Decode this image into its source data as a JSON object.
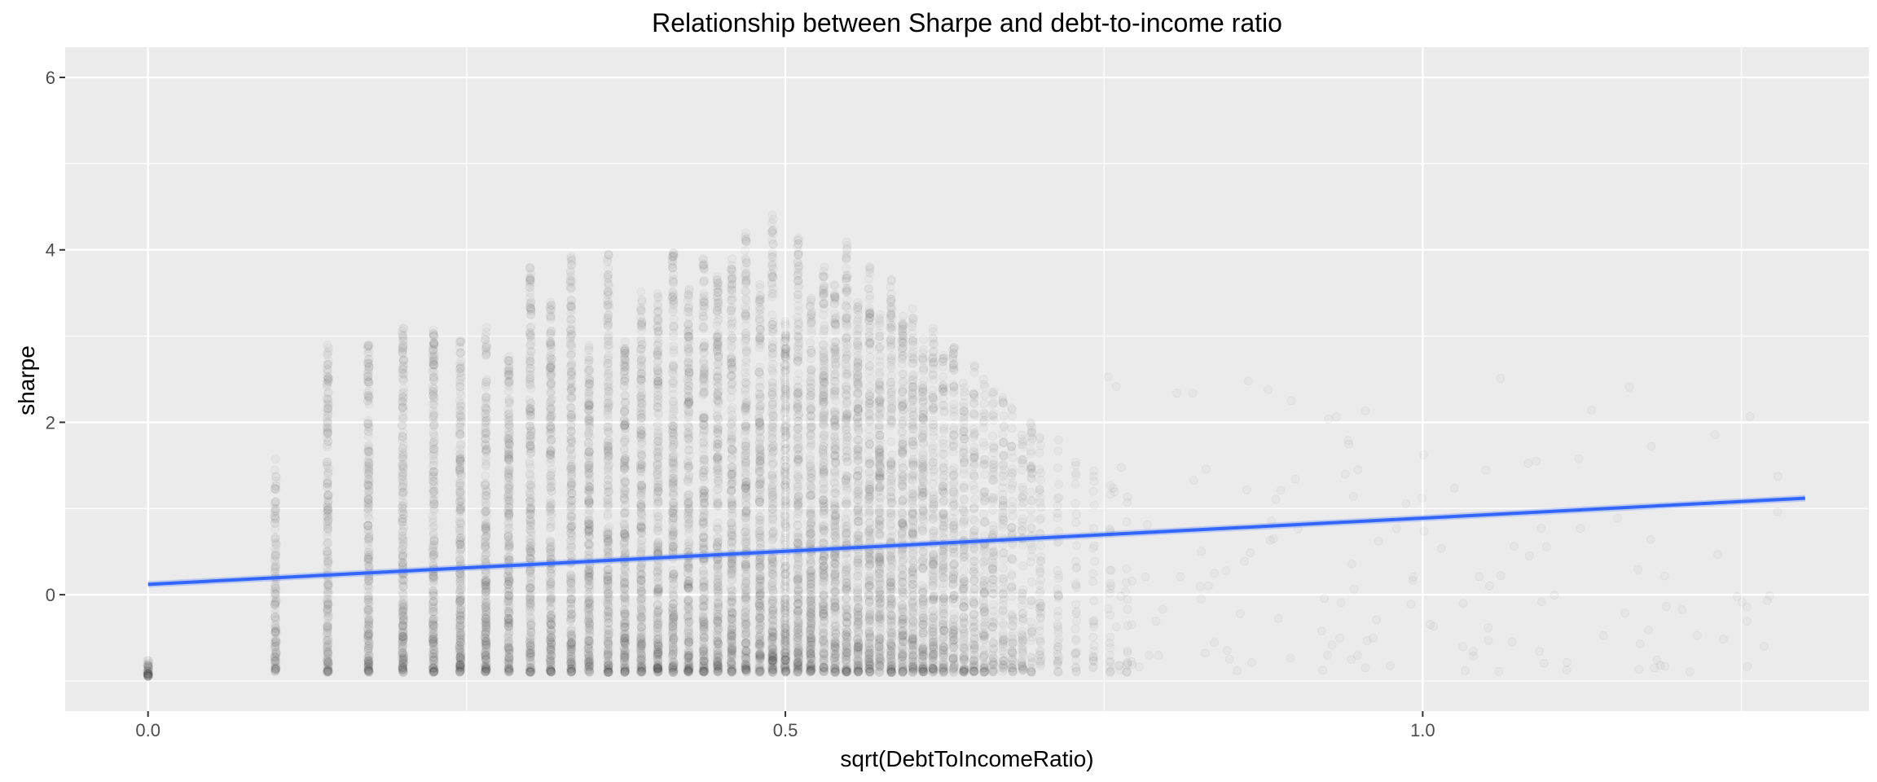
{
  "chart_data": {
    "type": "scatter",
    "title": "Relationship between Sharpe and debt-to-income ratio",
    "xlabel": "sqrt(DebtToIncomeRatio)",
    "ylabel": "sharpe",
    "xlim": [
      -0.065,
      1.35
    ],
    "ylim": [
      -1.35,
      6.35
    ],
    "x_ticks": [
      0.0,
      0.5,
      1.0
    ],
    "x_tick_labels": [
      "0.0",
      "0.5",
      "1.0"
    ],
    "y_ticks": [
      0,
      2,
      4,
      6
    ],
    "y_tick_labels": [
      "0",
      "2",
      "4",
      "6"
    ],
    "grid": true,
    "point_color": "#333333",
    "point_alpha": 0.03,
    "line_color": "#3366ff",
    "background": "#ebebeb",
    "grid_color": "#ffffff",
    "columns": [
      {
        "x": 0.0,
        "ymin": -0.95,
        "ymax": -0.75,
        "density": 0.2
      },
      {
        "x": 0.1,
        "ymin": -0.9,
        "ymax": 1.6,
        "density": 0.55
      },
      {
        "x": 0.141,
        "ymin": -0.9,
        "ymax": 2.9,
        "density": 0.85
      },
      {
        "x": 0.173,
        "ymin": -0.9,
        "ymax": 2.9,
        "density": 0.95
      },
      {
        "x": 0.2,
        "ymin": -0.9,
        "ymax": 3.1,
        "density": 1.0
      },
      {
        "x": 0.224,
        "ymin": -0.9,
        "ymax": 3.1,
        "density": 1.0
      },
      {
        "x": 0.245,
        "ymin": -0.9,
        "ymax": 3.0,
        "density": 1.0
      },
      {
        "x": 0.265,
        "ymin": -0.9,
        "ymax": 3.1,
        "density": 1.0
      },
      {
        "x": 0.283,
        "ymin": -0.9,
        "ymax": 2.8,
        "density": 1.0
      },
      {
        "x": 0.3,
        "ymin": -0.9,
        "ymax": 3.8,
        "density": 1.0
      },
      {
        "x": 0.316,
        "ymin": -0.9,
        "ymax": 3.4,
        "density": 1.0
      },
      {
        "x": 0.332,
        "ymin": -0.9,
        "ymax": 4.0,
        "density": 1.0
      },
      {
        "x": 0.346,
        "ymin": -0.9,
        "ymax": 3.0,
        "density": 1.0
      },
      {
        "x": 0.361,
        "ymin": -0.9,
        "ymax": 4.0,
        "density": 1.0
      },
      {
        "x": 0.374,
        "ymin": -0.9,
        "ymax": 3.0,
        "density": 1.0
      },
      {
        "x": 0.387,
        "ymin": -0.9,
        "ymax": 3.6,
        "density": 1.0
      },
      {
        "x": 0.4,
        "ymin": -0.9,
        "ymax": 3.5,
        "density": 1.0
      },
      {
        "x": 0.412,
        "ymin": -0.9,
        "ymax": 4.0,
        "density": 1.0
      },
      {
        "x": 0.424,
        "ymin": -0.9,
        "ymax": 3.6,
        "density": 1.0
      },
      {
        "x": 0.436,
        "ymin": -0.9,
        "ymax": 3.9,
        "density": 1.0
      },
      {
        "x": 0.447,
        "ymin": -0.9,
        "ymax": 3.7,
        "density": 1.0
      },
      {
        "x": 0.458,
        "ymin": -0.9,
        "ymax": 3.9,
        "density": 1.0
      },
      {
        "x": 0.469,
        "ymin": -0.9,
        "ymax": 4.2,
        "density": 1.0
      },
      {
        "x": 0.48,
        "ymin": -0.9,
        "ymax": 3.6,
        "density": 1.0
      },
      {
        "x": 0.49,
        "ymin": -0.9,
        "ymax": 4.5,
        "density": 1.0
      },
      {
        "x": 0.5,
        "ymin": -0.9,
        "ymax": 3.2,
        "density": 1.0
      },
      {
        "x": 0.51,
        "ymin": -0.9,
        "ymax": 4.2,
        "density": 1.0
      },
      {
        "x": 0.52,
        "ymin": -0.9,
        "ymax": 3.5,
        "density": 1.0
      },
      {
        "x": 0.53,
        "ymin": -0.9,
        "ymax": 3.8,
        "density": 0.95
      },
      {
        "x": 0.539,
        "ymin": -0.9,
        "ymax": 3.6,
        "density": 0.95
      },
      {
        "x": 0.548,
        "ymin": -0.9,
        "ymax": 4.1,
        "density": 0.9
      },
      {
        "x": 0.557,
        "ymin": -0.9,
        "ymax": 3.4,
        "density": 0.9
      },
      {
        "x": 0.566,
        "ymin": -0.9,
        "ymax": 3.9,
        "density": 0.85
      },
      {
        "x": 0.574,
        "ymin": -0.9,
        "ymax": 3.3,
        "density": 0.85
      },
      {
        "x": 0.583,
        "ymin": -0.9,
        "ymax": 3.7,
        "density": 0.8
      },
      {
        "x": 0.592,
        "ymin": -0.9,
        "ymax": 3.3,
        "density": 0.8
      },
      {
        "x": 0.6,
        "ymin": -0.9,
        "ymax": 3.4,
        "density": 0.75
      },
      {
        "x": 0.608,
        "ymin": -0.9,
        "ymax": 3.0,
        "density": 0.7
      },
      {
        "x": 0.616,
        "ymin": -0.9,
        "ymax": 3.1,
        "density": 0.65
      },
      {
        "x": 0.624,
        "ymin": -0.9,
        "ymax": 2.8,
        "density": 0.6
      },
      {
        "x": 0.632,
        "ymin": -0.9,
        "ymax": 2.9,
        "density": 0.55
      },
      {
        "x": 0.64,
        "ymin": -0.9,
        "ymax": 2.6,
        "density": 0.5
      },
      {
        "x": 0.648,
        "ymin": -0.9,
        "ymax": 2.7,
        "density": 0.45
      },
      {
        "x": 0.656,
        "ymin": -0.9,
        "ymax": 2.5,
        "density": 0.4
      },
      {
        "x": 0.663,
        "ymin": -0.9,
        "ymax": 2.4,
        "density": 0.35
      },
      {
        "x": 0.671,
        "ymin": -0.9,
        "ymax": 2.3,
        "density": 0.32
      },
      {
        "x": 0.678,
        "ymin": -0.9,
        "ymax": 2.2,
        "density": 0.28
      },
      {
        "x": 0.686,
        "ymin": -0.9,
        "ymax": 2.0,
        "density": 0.25
      },
      {
        "x": 0.693,
        "ymin": -0.9,
        "ymax": 2.0,
        "density": 0.22
      },
      {
        "x": 0.7,
        "ymin": -0.9,
        "ymax": 1.9,
        "density": 0.2
      },
      {
        "x": 0.714,
        "ymin": -0.9,
        "ymax": 1.8,
        "density": 0.16
      },
      {
        "x": 0.728,
        "ymin": -0.9,
        "ymax": 1.6,
        "density": 0.12
      },
      {
        "x": 0.742,
        "ymin": -0.9,
        "ymax": 1.5,
        "density": 0.1
      },
      {
        "x": 0.755,
        "ymin": -0.9,
        "ymax": 1.3,
        "density": 0.08
      },
      {
        "x": 0.768,
        "ymin": -0.9,
        "ymax": 1.2,
        "density": 0.06
      }
    ],
    "scatter_cloud": {
      "xmin": 0.75,
      "xmax": 1.3,
      "ymin": -0.9,
      "ymax": 2.6,
      "density": 0.06
    },
    "series": [
      {
        "type": "line",
        "x": [
          0.0,
          1.3
        ],
        "y": [
          0.12,
          1.12
        ]
      }
    ]
  }
}
